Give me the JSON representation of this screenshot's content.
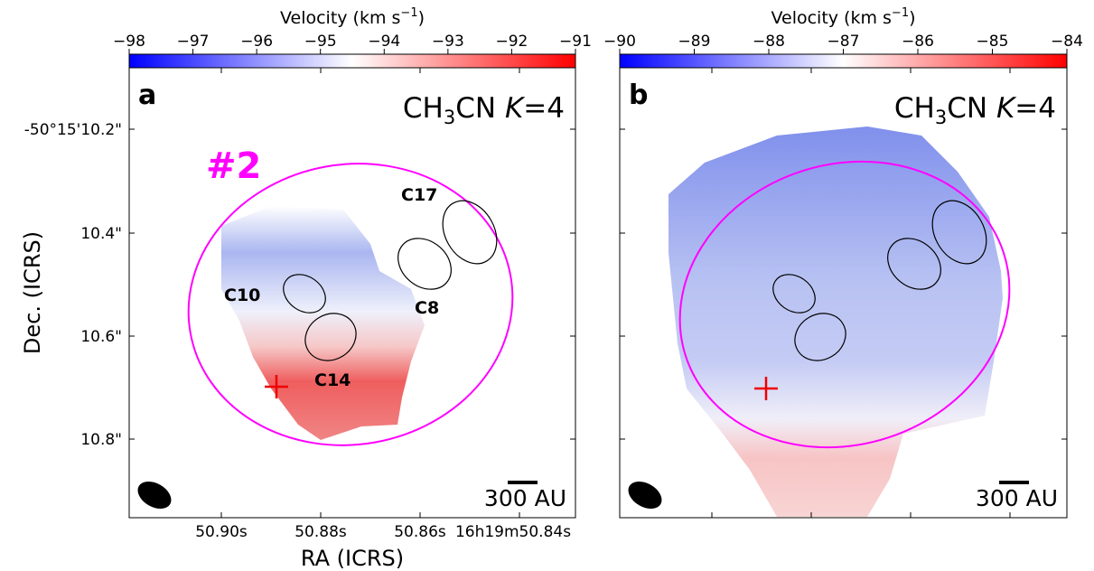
{
  "panels": [
    {
      "letter": "a",
      "line": [
        "CH",
        "3",
        "CN ",
        "K",
        "=4"
      ],
      "colorbar": {
        "label": [
          "Velocity (km s",
          "−1",
          ")"
        ],
        "lim": [
          -98,
          -91
        ],
        "ticks": [
          {
            "value": -98,
            "label": "−98"
          },
          {
            "value": -97,
            "label": "−97"
          },
          {
            "value": -96,
            "label": "−96"
          },
          {
            "value": -95,
            "label": "−95"
          },
          {
            "value": -94,
            "label": "−94"
          },
          {
            "value": -93,
            "label": "−93"
          },
          {
            "value": -92,
            "label": "−92"
          },
          {
            "value": -91,
            "label": "−91"
          }
        ]
      },
      "scale_bar": "300 AU",
      "region_label": "#2",
      "sources": [
        "C10",
        "C14",
        "C8",
        "C17"
      ]
    },
    {
      "letter": "b",
      "line": [
        "CH",
        "3",
        "CN ",
        "K",
        "=4"
      ],
      "colorbar": {
        "label": [
          "Velocity (km s",
          "−1",
          ")"
        ],
        "lim": [
          -90,
          -84
        ],
        "ticks": [
          {
            "value": -90,
            "label": "−90"
          },
          {
            "value": -89,
            "label": "−89"
          },
          {
            "value": -88,
            "label": "−88"
          },
          {
            "value": -87,
            "label": "−87"
          },
          {
            "value": -86,
            "label": "−86"
          },
          {
            "value": -85,
            "label": "−85"
          },
          {
            "value": -84,
            "label": "−84"
          }
        ]
      },
      "scale_bar": "300 AU"
    }
  ],
  "y_axis": {
    "label": "Dec. (ICRS)",
    "ticks": [
      "-50°15'10.2\"",
      "10.4\"",
      "10.6\"",
      "10.8\""
    ]
  },
  "x_axis": {
    "label": "RA (ICRS)",
    "ticks": [
      "50.90s",
      "50.88s",
      "50.86s",
      "16h19m50.84s"
    ]
  }
}
